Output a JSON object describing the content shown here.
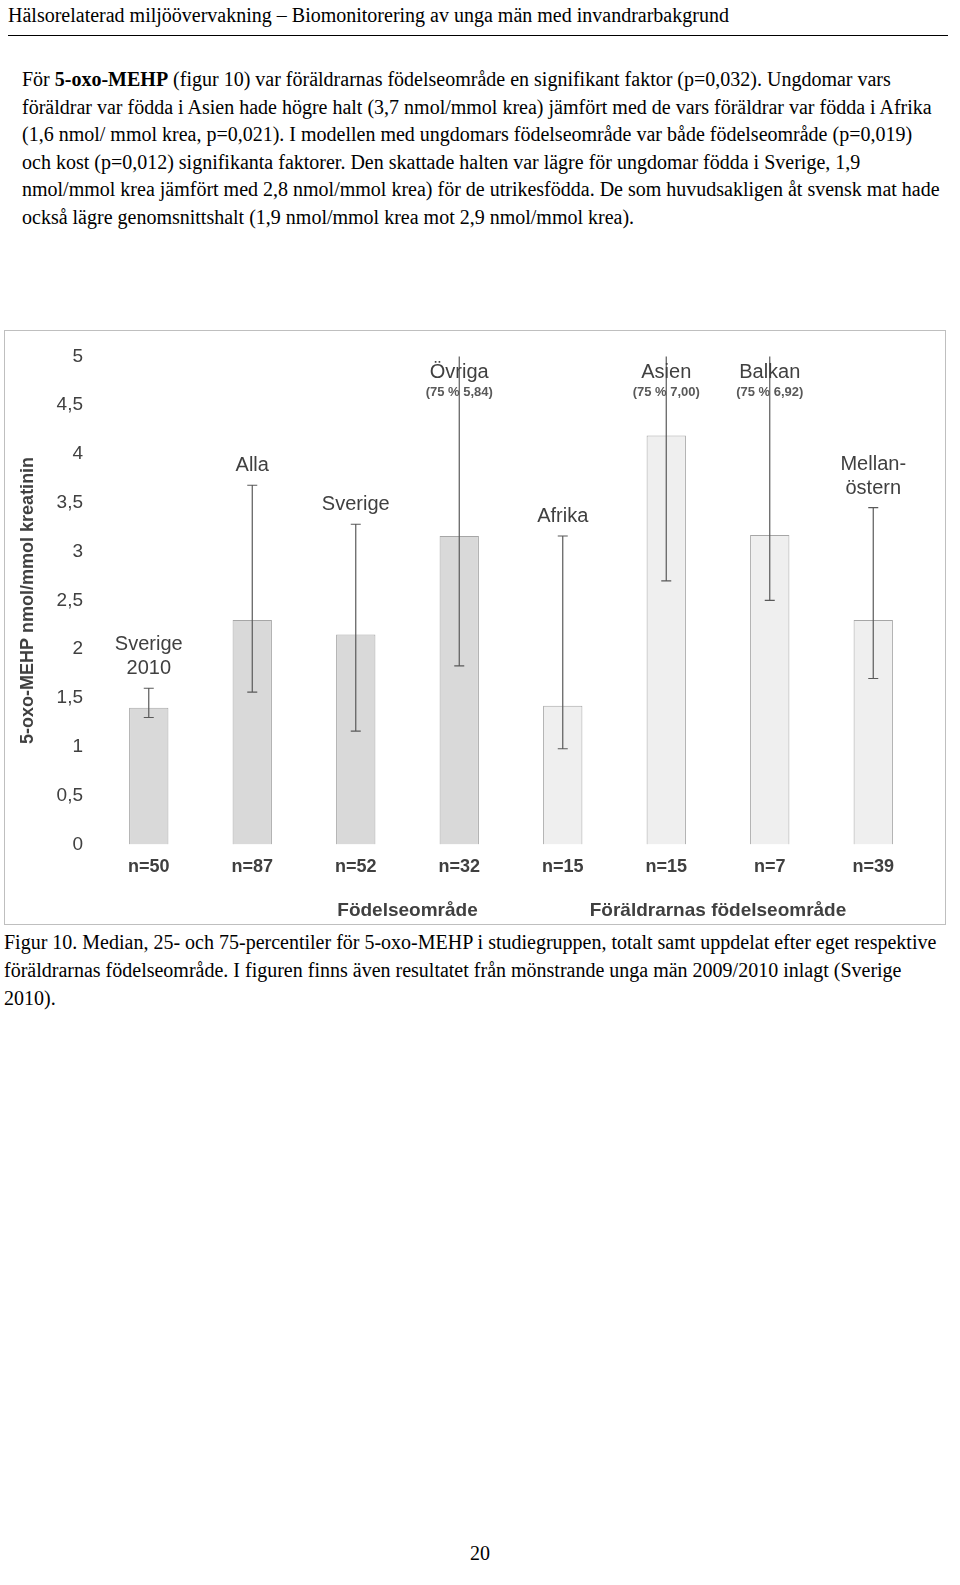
{
  "header": "Hälsorelaterad miljöövervakning – Biomonitorering av unga män med invandrarbakgrund",
  "paragraph": [
    {
      "text": "För "
    },
    {
      "text": "5-oxo-MEHP",
      "bold": true
    },
    {
      "text": " (figur 10) var föräldrarnas födelseområde en signifikant faktor (p=0,032). Ungdomar vars föräldrar var födda i Asien hade högre halt (3,7 nmol/mmol krea) jämfört med de vars föräldrar var födda i Afrika (1,6 nmol/ mmol krea, p=0,021). I modellen med ungdomars födelseområde var både födelseområde (p=0,019) och kost (p=0,012) signifikanta faktorer. Den skattade halten var lägre för ungdomar födda i Sverige, 1,9 nmol/mmol krea jämfört med 2,8 nmol/mmol krea) för de utrikesfödda. De som huvudsakligen åt svensk mat hade också lägre genomsnittshalt (1,9 nmol/mmol krea mot 2,9 nmol/mmol krea)."
    }
  ],
  "chart_data": {
    "type": "bar",
    "y_label": "5-oxo-MEHP nmol/mmol kreatinin",
    "categories": [
      "n=50",
      "n=87",
      "n=52",
      "n=32",
      "n=15",
      "n=15",
      "n=7",
      "n=39"
    ],
    "bar_labels": [
      [
        "Sverige",
        "2010"
      ],
      [
        "Alla"
      ],
      [
        "Sverige"
      ],
      [
        "Övriga"
      ],
      [
        "Afrika"
      ],
      [
        "Asien"
      ],
      [
        "Balkan"
      ],
      [
        "Mellan-",
        "östern"
      ]
    ],
    "values": [
      1.4,
      2.3,
      2.15,
      3.16,
      1.42,
      4.19,
      3.17,
      2.3
    ],
    "error_low": [
      1.3,
      1.56,
      1.16,
      1.83,
      0.98,
      2.7,
      2.5,
      1.7
    ],
    "error_high": [
      1.6,
      3.68,
      3.28,
      5.84,
      3.16,
      7.0,
      6.92,
      3.45
    ],
    "high_labels": [
      null,
      null,
      null,
      "(75 % 5,84)",
      null,
      "(75 % 7,00)",
      "(75 % 6,92)",
      null
    ],
    "groups": [
      {
        "label": "Födelseområde",
        "start": 2,
        "end": 3
      },
      {
        "label": "Föräldrarnas födelseområde",
        "start": 4,
        "end": 7
      }
    ],
    "colors": [
      "#d9d9d9",
      "#d9d9d9",
      "#d9d9d9",
      "#d9d9d9",
      "#efefef",
      "#efefef",
      "#efefef",
      "#efefef"
    ],
    "ylim": [
      0,
      5
    ],
    "yticks": [
      0,
      {
        "value": 0.5,
        "label": "0,5"
      },
      1,
      {
        "value": 1.5,
        "label": "1,5"
      },
      2,
      {
        "value": 2.5,
        "label": "2,5"
      },
      3,
      {
        "value": 3.5,
        "label": "3,5"
      },
      4,
      {
        "value": 4.5,
        "label": "4,5"
      },
      5
    ],
    "grid": false
  },
  "caption": "Figur 10. Median, 25- och 75-percentiler för 5-oxo-MEHP i studiegruppen, totalt samt uppdelat efter eget respektive föräldrarnas födelseområde. I figuren finns även resultatet från mönstrande unga män 2009/2010 inlagt (Sverige 2010).",
  "page_number": 20
}
